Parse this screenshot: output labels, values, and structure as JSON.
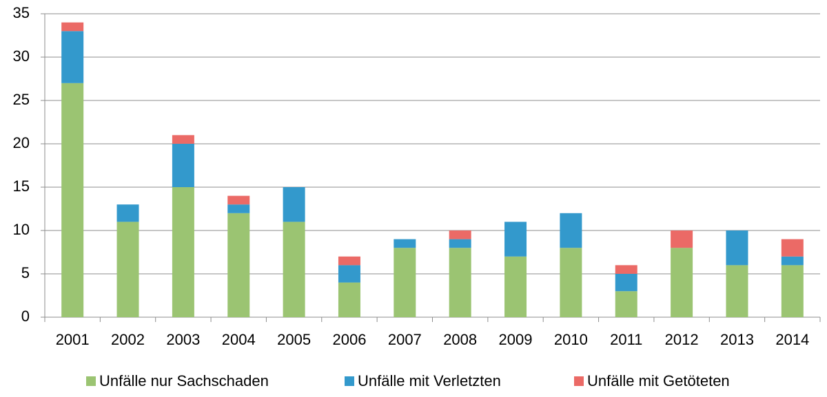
{
  "chart_data": {
    "type": "stacked_bar",
    "categories": [
      "2001",
      "2002",
      "2003",
      "2004",
      "2005",
      "2006",
      "2007",
      "2008",
      "2009",
      "2010",
      "2011",
      "2012",
      "2013",
      "2014"
    ],
    "series": [
      {
        "name": "Unfälle nur Sachschaden",
        "color": "#9bc472",
        "values": [
          27,
          11,
          15,
          12,
          11,
          4,
          8,
          8,
          7,
          8,
          3,
          8,
          6,
          6
        ]
      },
      {
        "name": "Unfälle mit Verletzten",
        "color": "#3399cc",
        "values": [
          6,
          2,
          5,
          1,
          4,
          2,
          1,
          1,
          4,
          4,
          2,
          0,
          4,
          1
        ]
      },
      {
        "name": "Unfälle mit Getöteten",
        "color": "#eb6a66",
        "values": [
          1,
          0,
          1,
          1,
          0,
          1,
          0,
          1,
          0,
          0,
          1,
          2,
          0,
          2
        ]
      }
    ],
    "ylim": [
      0,
      35
    ],
    "yticks": [
      0,
      5,
      10,
      15,
      20,
      25,
      30,
      35
    ],
    "grid": true,
    "legend": "bottom"
  }
}
